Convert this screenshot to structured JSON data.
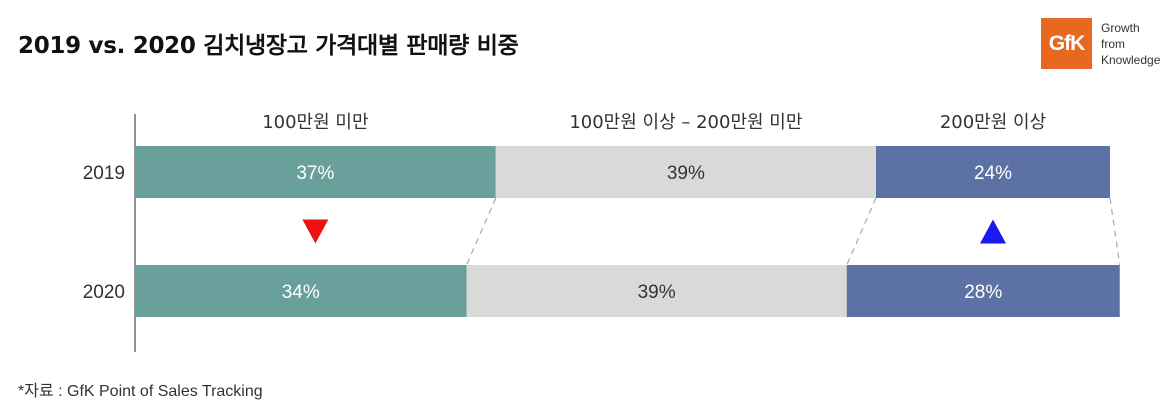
{
  "title": "2019 vs. 2020 김치냉장고 가격대별 판매량 비중",
  "logo": {
    "text": "GfK",
    "tagline": [
      "Growth",
      "from",
      "Knowledge"
    ]
  },
  "footnote": "*자료 : GfK Point of Sales Tracking",
  "colors": {
    "segment_1": "#6aa09b",
    "segment_2": "#d9d9d9",
    "segment_3": "#5d72a4",
    "down_marker": "#ee1111",
    "up_marker": "#1a1aee"
  },
  "chart_data": {
    "type": "bar",
    "stacked": true,
    "orientation": "horizontal",
    "normalized_percent": true,
    "categories": [
      "2019",
      "2020"
    ],
    "series": [
      {
        "name": "100만원 미만",
        "values": [
          37,
          34
        ],
        "labels": [
          "37%",
          "34%"
        ]
      },
      {
        "name": "100만원 이상 – 200만원 미만",
        "values": [
          39,
          39
        ],
        "labels": [
          "39%",
          "39%"
        ]
      },
      {
        "name": "200만원 이상",
        "values": [
          24,
          28
        ],
        "labels": [
          "24%",
          "28%"
        ]
      }
    ],
    "xlim": [
      0,
      100
    ],
    "legend": "top",
    "grid": false,
    "markers": [
      {
        "series": "100만원 미만",
        "direction": "down"
      },
      {
        "series": "200만원 이상",
        "direction": "up"
      }
    ]
  }
}
